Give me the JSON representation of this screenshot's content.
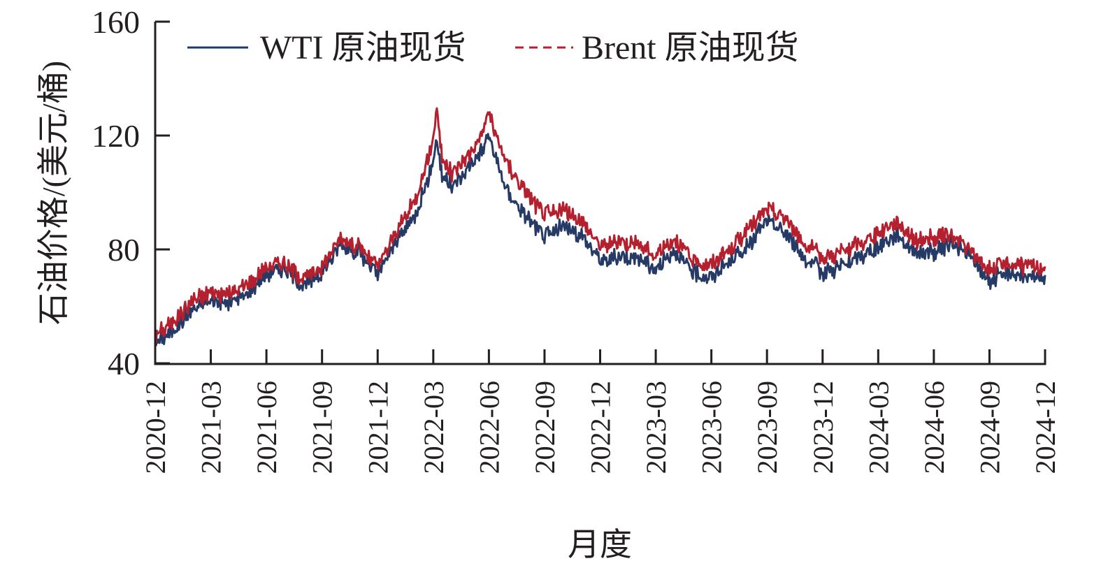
{
  "chart_data": {
    "type": "line",
    "title": "",
    "xlabel": "月度",
    "ylabel": "石油价格/(美元/桶)",
    "ylim": [
      40,
      160
    ],
    "yticks": [
      40,
      80,
      120,
      160
    ],
    "xticks": [
      "2020-12",
      "2021-03",
      "2021-06",
      "2021-09",
      "2021-12",
      "2022-03",
      "2022-06",
      "2022-09",
      "2022-12",
      "2023-03",
      "2023-06",
      "2023-09",
      "2023-12",
      "2024-03",
      "2024-06",
      "2024-09",
      "2024-12"
    ],
    "grid": false,
    "legend_position": "top-left, horizontal",
    "x": [
      "2020-12",
      "2021-01",
      "2021-02",
      "2021-03",
      "2021-04",
      "2021-05",
      "2021-06",
      "2021-07",
      "2021-08",
      "2021-09",
      "2021-10",
      "2021-11",
      "2021-12",
      "2022-01",
      "2022-02",
      "2022-03",
      "2022-04",
      "2022-05",
      "2022-06",
      "2022-07",
      "2022-08",
      "2022-09",
      "2022-10",
      "2022-11",
      "2022-12",
      "2023-01",
      "2023-02",
      "2023-03",
      "2023-04",
      "2023-05",
      "2023-06",
      "2023-07",
      "2023-08",
      "2023-09",
      "2023-10",
      "2023-11",
      "2023-12",
      "2024-01",
      "2024-02",
      "2024-03",
      "2024-04",
      "2024-05",
      "2024-06",
      "2024-07",
      "2024-08",
      "2024-09",
      "2024-10",
      "2024-11",
      "2024-12"
    ],
    "series": [
      {
        "name": "WTI 原油现货",
        "color": "#263a66",
        "style": "solid",
        "values": [
          47,
          52,
          59,
          62,
          61,
          65,
          72,
          73,
          67,
          72,
          82,
          79,
          71,
          83,
          92,
          110,
          102,
          110,
          118,
          100,
          92,
          84,
          88,
          85,
          76,
          78,
          77,
          73,
          80,
          72,
          70,
          76,
          81,
          90,
          86,
          77,
          72,
          74,
          77,
          81,
          85,
          79,
          79,
          82,
          77,
          69,
          72,
          70,
          71
        ]
      },
      {
        "name": "Brent 原油现货",
        "color": "#b5202e",
        "style": "dashed",
        "values": [
          50,
          55,
          62,
          65,
          64,
          68,
          74,
          75,
          70,
          74,
          84,
          81,
          74,
          86,
          97,
          118,
          106,
          114,
          125,
          110,
          100,
          92,
          94,
          90,
          81,
          83,
          82,
          78,
          84,
          76,
          75,
          80,
          87,
          94,
          91,
          82,
          77,
          79,
          82,
          86,
          90,
          83,
          84,
          85,
          79,
          73,
          75,
          74,
          74
        ]
      }
    ]
  },
  "legend": {
    "items": [
      {
        "label": "WTI 原油现货",
        "color": "#263a66",
        "style": "solid"
      },
      {
        "label": "Brent 原油现货",
        "color": "#b5202e",
        "style": "dashed"
      }
    ]
  },
  "axes": {
    "y_title": "石油价格/(美元/桶)",
    "x_title": "月度",
    "y_tick_labels": [
      "160",
      "120",
      "80",
      "40"
    ],
    "x_tick_labels": [
      "2020-12",
      "2021-03",
      "2021-06",
      "2021-09",
      "2021-12",
      "2022-03",
      "2022-06",
      "2022-09",
      "2022-12",
      "2023-03",
      "2023-06",
      "2023-09",
      "2023-12",
      "2024-03",
      "2024-06",
      "2024-09",
      "2024-12"
    ]
  }
}
